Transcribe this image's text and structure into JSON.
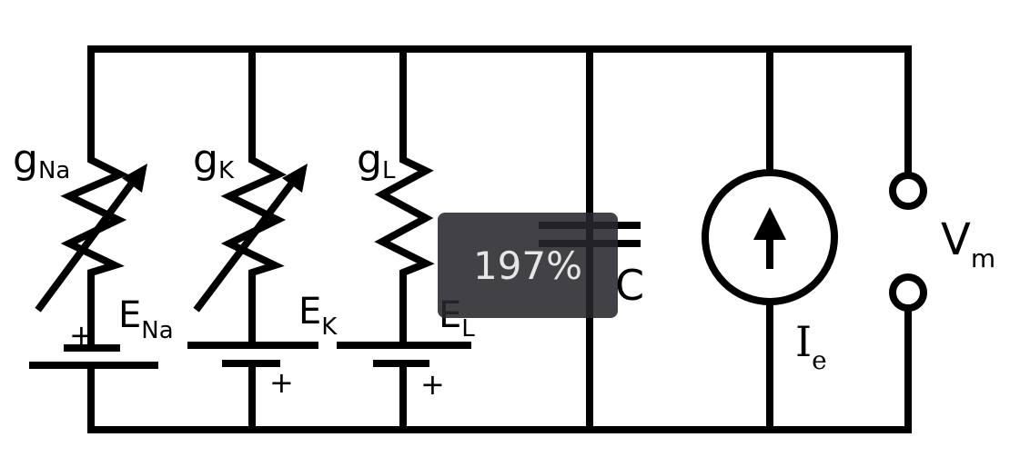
{
  "labels": {
    "g_na": {
      "base": "g",
      "sub": "Na"
    },
    "g_k": {
      "base": "g",
      "sub": "K"
    },
    "g_l": {
      "base": "g",
      "sub": "L"
    },
    "e_na": {
      "base": "E",
      "sub": "Na"
    },
    "e_k": {
      "base": "E",
      "sub": "K"
    },
    "e_l": {
      "base": "E",
      "sub": "L"
    },
    "capacitor": "C",
    "current_source": {
      "base": "I",
      "sub": "e"
    },
    "vm": {
      "base": "V",
      "sub": "m"
    },
    "plus": "+"
  },
  "zoom_indicator": "197%"
}
